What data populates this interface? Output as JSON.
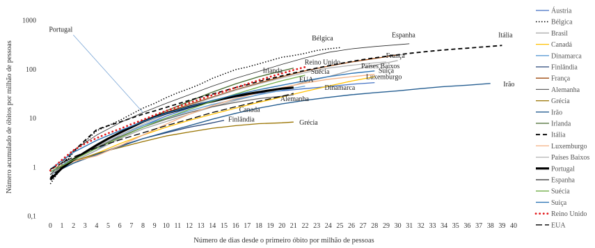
{
  "chart_data": {
    "type": "line",
    "xlabel": "Número de dias desde o primeiro óbito por milhão de pessoas",
    "ylabel": "Número acumulado de óbitos por milhão de pessoas",
    "y_scale": "log",
    "ylim": [
      0.1,
      1000
    ],
    "xlim": [
      -0.5,
      40
    ],
    "x_ticks": [
      "0",
      "1",
      "2",
      "3",
      "4",
      "5",
      "6",
      "7",
      "8",
      "9",
      "10",
      "11",
      "12",
      "13",
      "14",
      "15",
      "16",
      "17",
      "18",
      "19",
      "20",
      "21",
      "22",
      "23",
      "24",
      "25",
      "26",
      "27",
      "28",
      "29",
      "30",
      "31",
      "32",
      "33",
      "34",
      "35",
      "36",
      "37",
      "38",
      "39",
      "40"
    ],
    "y_ticks": [
      "0,1",
      "1",
      "10",
      "100",
      "1000"
    ],
    "grid": false,
    "legend_position": "right",
    "series": [
      {
        "name": "Áustria",
        "color": "#4472c4",
        "dash": "solid",
        "width": 1.3,
        "x": [
          0,
          2,
          4,
          6,
          8,
          10,
          12,
          14,
          16,
          18,
          20,
          22,
          24,
          26,
          28
        ],
        "y": [
          0.8,
          1.3,
          2.2,
          4.5,
          7,
          11,
          16,
          22,
          27,
          32,
          36,
          40,
          44,
          49,
          53
        ]
      },
      {
        "name": "Bélgica",
        "color": "#000000",
        "dash": "dot",
        "width": 1.5,
        "x": [
          0,
          1,
          2,
          3,
          4,
          5,
          6,
          7,
          8,
          9,
          10,
          11,
          12,
          13,
          14,
          15,
          16,
          17,
          18,
          19,
          20,
          21,
          22,
          23,
          24,
          25
        ],
        "y": [
          0.45,
          1.0,
          2.0,
          3.3,
          5.5,
          7,
          9,
          12,
          16,
          20,
          26,
          33,
          40,
          50,
          65,
          80,
          98,
          110,
          128,
          150,
          175,
          190,
          210,
          240,
          260,
          275
        ]
      },
      {
        "name": "Brasil",
        "color": "#a5a5a5",
        "dash": "solid",
        "width": 1.3,
        "x": [
          0,
          2,
          4,
          6,
          8,
          10,
          12,
          14,
          16,
          18,
          20,
          22,
          24,
          26,
          28,
          30
        ],
        "y": [
          0.7,
          1.3,
          2.2,
          3.8,
          6,
          8.5,
          12,
          17,
          23,
          30,
          40,
          55,
          70,
          95,
          120,
          150
        ]
      },
      {
        "name": "Canadá",
        "color": "#ffc000",
        "dash": "solid",
        "width": 1.3,
        "x": [
          0,
          2,
          4,
          6,
          8,
          10,
          12,
          14,
          16,
          18,
          20,
          22,
          24,
          26,
          28
        ],
        "y": [
          0.7,
          1.2,
          1.9,
          3,
          4.5,
          6.5,
          9,
          12,
          16,
          21,
          27,
          35,
          45,
          57,
          70
        ]
      },
      {
        "name": "Dinamarca",
        "color": "#5b9bd5",
        "dash": "solid",
        "width": 1.3,
        "x": [
          0,
          2,
          4,
          6,
          8,
          10,
          12,
          14,
          16,
          18,
          20,
          22
        ],
        "y": [
          0.8,
          1.5,
          2.6,
          4.5,
          7,
          10,
          14,
          19,
          24,
          30,
          37,
          45
        ]
      },
      {
        "name": "Finlândia",
        "color": "#264478",
        "dash": "solid",
        "width": 1.3,
        "x": [
          0,
          2,
          4,
          6,
          8,
          10,
          12,
          14,
          15
        ],
        "y": [
          0.7,
          1.2,
          1.8,
          2.7,
          3.8,
          5,
          6.5,
          8,
          9
        ]
      },
      {
        "name": "França",
        "color": "#9e480e",
        "dash": "solid",
        "width": 1.3,
        "x": [
          0,
          2,
          4,
          6,
          8,
          10,
          12,
          14,
          16,
          18,
          20,
          22,
          24,
          26,
          28,
          30
        ],
        "y": [
          0.7,
          1.5,
          2.8,
          5,
          8.5,
          13,
          19,
          27,
          38,
          52,
          70,
          92,
          115,
          140,
          165,
          195
        ]
      },
      {
        "name": "Alemanha",
        "color": "#636363",
        "dash": "solid",
        "width": 1.3,
        "x": [
          0,
          2,
          4,
          6,
          8,
          10,
          12,
          14,
          16,
          18,
          20,
          21
        ],
        "y": [
          0.7,
          1.4,
          2.5,
          4.2,
          6.5,
          9.5,
          13,
          17,
          21,
          25,
          28,
          30
        ]
      },
      {
        "name": "Grécia",
        "color": "#997300",
        "dash": "solid",
        "width": 1.3,
        "x": [
          0,
          2,
          4,
          6,
          8,
          10,
          12,
          14,
          16,
          18,
          20,
          21
        ],
        "y": [
          0.7,
          1.3,
          1.9,
          2.5,
          3.3,
          4.3,
          5.2,
          6.2,
          7,
          7.7,
          8,
          8.3
        ]
      },
      {
        "name": "Irão",
        "color": "#255e91",
        "dash": "solid",
        "width": 1.4,
        "x": [
          0,
          2,
          4,
          6,
          8,
          10,
          12,
          14,
          16,
          18,
          20,
          22,
          24,
          26,
          28,
          30,
          32,
          34,
          36,
          38
        ],
        "y": [
          0.7,
          1.2,
          1.8,
          2.6,
          3.8,
          5.2,
          7,
          9.5,
          12.5,
          16,
          19.5,
          23,
          26.5,
          30,
          33,
          36,
          40,
          44,
          47,
          51
        ]
      },
      {
        "name": "Irlanda",
        "color": "#43682b",
        "dash": "solid",
        "width": 1.3,
        "x": [
          0,
          2,
          4,
          6,
          8,
          10,
          12,
          14,
          16,
          18,
          20,
          21
        ],
        "y": [
          0.7,
          1.5,
          2.8,
          5,
          8.5,
          14,
          22,
          34,
          50,
          70,
          92,
          105
        ]
      },
      {
        "name": "Itália",
        "color": "#000000",
        "dash": "dash",
        "width": 1.8,
        "x": [
          0,
          1,
          2,
          3,
          4,
          5,
          6,
          7,
          8,
          9,
          10,
          11,
          12,
          13,
          14,
          15,
          16,
          17,
          18,
          19,
          20,
          21,
          22,
          23,
          24,
          25,
          26,
          27,
          28,
          29,
          30,
          31,
          32,
          33,
          34,
          35,
          36,
          37,
          38,
          39
        ],
        "y": [
          0.6,
          1.1,
          2.1,
          3.5,
          5.8,
          7.0,
          8.3,
          10,
          12,
          14,
          16.5,
          19.5,
          23,
          27,
          31,
          36,
          42,
          48,
          56,
          64,
          73,
          83,
          94,
          105,
          117,
          130,
          143,
          157,
          170,
          183,
          196,
          210,
          222,
          235,
          247,
          258,
          268,
          280,
          292,
          305
        ]
      },
      {
        "name": "Luxemburgo",
        "color": "#f4b183",
        "dash": "solid",
        "width": 1.3,
        "x": [
          0,
          2,
          4,
          6,
          8,
          10,
          12,
          14,
          16,
          18,
          20,
          22,
          24,
          26,
          28
        ],
        "y": [
          0.9,
          1.3,
          1.7,
          2.7,
          4.5,
          7.5,
          12,
          18,
          25,
          33,
          42,
          52,
          62,
          70,
          78
        ]
      },
      {
        "name": "Países Baixos",
        "color": "#b4b4b4",
        "dash": "solid",
        "width": 1.3,
        "x": [
          0,
          2,
          4,
          6,
          8,
          10,
          12,
          14,
          16,
          18,
          20,
          22,
          24,
          26,
          28,
          29
        ],
        "y": [
          0.7,
          1.4,
          2.6,
          4.5,
          7.5,
          12,
          18,
          26,
          37,
          50,
          66,
          85,
          105,
          120,
          135,
          140
        ]
      },
      {
        "name": "Portugal",
        "color": "#000000",
        "dash": "solid",
        "width": 3.2,
        "x": [
          0,
          1,
          2,
          3,
          4,
          5,
          6,
          7,
          8,
          9,
          10,
          11,
          12,
          13,
          14,
          15,
          16,
          17,
          18,
          19,
          20,
          21
        ],
        "y": [
          0.55,
          0.95,
          1.4,
          2.0,
          2.8,
          3.8,
          5.0,
          6.5,
          8.5,
          10.5,
          12.5,
          14.5,
          17,
          19.5,
          22,
          25,
          28,
          31,
          34,
          37,
          40,
          42
        ]
      },
      {
        "name": "Espanha",
        "color": "#262626",
        "dash": "solid",
        "width": 0.8,
        "x": [
          0,
          2,
          4,
          6,
          8,
          10,
          12,
          14,
          16,
          18,
          20,
          22,
          24,
          26,
          28,
          30,
          31
        ],
        "y": [
          0.7,
          2.2,
          4.5,
          8,
          13,
          20,
          30,
          45,
          65,
          90,
          125,
          170,
          220,
          260,
          290,
          315,
          330
        ]
      },
      {
        "name": "Suécia",
        "color": "#70ad47",
        "dash": "solid",
        "width": 1.3,
        "x": [
          0,
          2,
          4,
          6,
          8,
          10,
          12,
          14,
          16,
          18,
          20,
          22
        ],
        "y": [
          0.8,
          1.4,
          2.4,
          4,
          6.5,
          10,
          15,
          22,
          31,
          43,
          58,
          75
        ]
      },
      {
        "name": "Suiça",
        "color": "#2e75b6",
        "dash": "solid",
        "width": 1.4,
        "x": [
          0,
          2,
          4,
          6,
          8,
          10,
          12,
          14,
          16,
          18,
          20,
          22,
          24,
          26,
          28
        ],
        "y": [
          0.9,
          2.0,
          3.5,
          5.5,
          8.5,
          12.5,
          17,
          23,
          30,
          38,
          47,
          58,
          70,
          82,
          92
        ]
      },
      {
        "name": "Reino Unido",
        "color": "#e31a1c",
        "dash": "dotbig",
        "width": 2.8,
        "x": [
          0,
          1,
          2,
          3,
          4,
          5,
          6,
          7,
          8,
          9,
          10,
          11,
          12,
          13,
          14,
          15,
          16,
          17,
          18,
          19,
          20,
          21,
          22
        ],
        "y": [
          0.85,
          1.4,
          2.2,
          3.0,
          3.9,
          4.9,
          6.0,
          7.5,
          9.2,
          11.5,
          14,
          17,
          20.5,
          24.5,
          29.5,
          35,
          42,
          50,
          59,
          70,
          82,
          96,
          110
        ]
      },
      {
        "name": "EUA",
        "color": "#000000",
        "dash": "longdash",
        "width": 1.3,
        "x": [
          0,
          2,
          4,
          6,
          8,
          10,
          12,
          14,
          16,
          18,
          20,
          21
        ],
        "y": [
          0.9,
          1.6,
          2.5,
          3.6,
          5,
          7,
          9.5,
          13,
          17,
          22,
          28,
          32
        ]
      }
    ],
    "annotations": [
      {
        "text": "Portugal",
        "x": 0.9,
        "y": 650,
        "anchor": "middle",
        "arrow_to": [
          8,
          13
        ]
      },
      {
        "text": "Bélgica",
        "x": 23.5,
        "y": 430,
        "anchor": "middle"
      },
      {
        "text": "Espanha",
        "x": 30.5,
        "y": 500,
        "anchor": "middle"
      },
      {
        "text": "Itália",
        "x": 39.3,
        "y": 500,
        "anchor": "middle"
      },
      {
        "text": "França",
        "x": 29.8,
        "y": 190,
        "anchor": "middle"
      },
      {
        "text": "Reino Unido",
        "x": 23.5,
        "y": 140,
        "anchor": "middle"
      },
      {
        "text": "Países Baixos",
        "x": 28.5,
        "y": 117,
        "anchor": "middle"
      },
      {
        "text": "Suiça",
        "x": 29,
        "y": 95,
        "anchor": "middle"
      },
      {
        "text": "Irlanda",
        "x": 19.2,
        "y": 95,
        "anchor": "middle"
      },
      {
        "text": "Suécia",
        "x": 23.3,
        "y": 90,
        "anchor": "middle"
      },
      {
        "text": "Luxemburgo",
        "x": 28.8,
        "y": 70,
        "anchor": "middle"
      },
      {
        "text": "EUA",
        "x": 22.1,
        "y": 62,
        "anchor": "middle"
      },
      {
        "text": "Dinamarca",
        "x": 25,
        "y": 42,
        "anchor": "middle"
      },
      {
        "text": "Irão",
        "x": 39.6,
        "y": 50,
        "anchor": "middle"
      },
      {
        "text": "Alemanha",
        "x": 21.1,
        "y": 25,
        "anchor": "middle"
      },
      {
        "text": "Canada",
        "x": 17.2,
        "y": 15,
        "anchor": "middle"
      },
      {
        "text": "Finlândia",
        "x": 16.5,
        "y": 9.5,
        "anchor": "middle"
      },
      {
        "text": "Grécia",
        "x": 22.3,
        "y": 8.2,
        "anchor": "middle"
      }
    ]
  }
}
